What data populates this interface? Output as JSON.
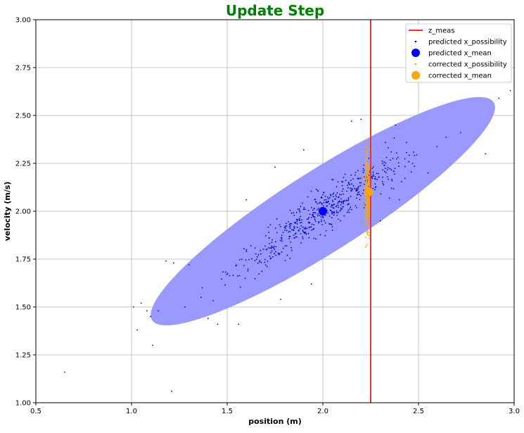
{
  "chart_data": {
    "type": "scatter",
    "title": "Update Step",
    "title_color": "#008000",
    "xlabel": "position (m)",
    "ylabel": "velocity (m/s)",
    "xlim": [
      0.5,
      3.0
    ],
    "ylim": [
      1.0,
      3.0
    ],
    "xticks": [
      "0.5",
      "1.0",
      "1.5",
      "2.0",
      "2.5",
      "3.0"
    ],
    "yticks": [
      "1.00",
      "1.25",
      "1.50",
      "1.75",
      "2.00",
      "2.25",
      "2.50",
      "2.75",
      "3.00"
    ],
    "grid": true,
    "legend_position": "top-right",
    "legend": [
      {
        "label": "z_meas",
        "marker": "line",
        "color": "#e8352a"
      },
      {
        "label": "predicted x_possibility",
        "marker": "small-dot",
        "color": "#0000cc"
      },
      {
        "label": "predicted x_mean",
        "marker": "large-dot",
        "color": "#0000ff"
      },
      {
        "label": "corrected x_possibility",
        "marker": "small-dot",
        "color": "#ffa500"
      },
      {
        "label": "corrected x_mean",
        "marker": "large-dot",
        "color": "#ffa500"
      }
    ],
    "z_meas": {
      "x": 2.25,
      "color": "#e8352a"
    },
    "ellipse": {
      "center": [
        2.0,
        2.0
      ],
      "x_extent": [
        1.1,
        2.9
      ],
      "y_extent": [
        1.39,
        2.61
      ],
      "fill": "#9999ff"
    },
    "predicted_mean": {
      "x": 2.0,
      "y": 2.0,
      "color": "#0000ff"
    },
    "corrected_mean": {
      "x": 2.24,
      "y": 2.1,
      "color": "#ffa500"
    },
    "predicted_points": {
      "color": "#0000cc",
      "x": [
        0.65,
        1.21,
        1.03,
        1.11,
        1.01,
        1.05,
        1.08,
        1.1,
        1.14,
        1.18,
        1.22,
        1.28,
        1.3,
        1.37,
        1.4,
        1.45,
        1.56,
        1.78,
        1.94,
        2.92,
        2.98,
        2.85,
        2.72,
        2.55,
        2.47,
        2.38,
        2.2,
        2.15,
        1.9,
        1.75,
        1.6,
        2.3,
        2.4,
        2.05,
        1.85
      ],
      "y": [
        1.16,
        1.06,
        1.38,
        1.3,
        1.5,
        1.52,
        1.48,
        1.45,
        1.48,
        1.74,
        1.73,
        1.5,
        1.72,
        1.6,
        1.44,
        1.41,
        1.41,
        1.54,
        1.62,
        2.59,
        2.63,
        2.3,
        2.41,
        2.2,
        2.25,
        2.45,
        2.48,
        2.47,
        2.32,
        2.23,
        2.06,
        1.95,
        2.06,
        1.9,
        1.92
      ]
    }
  }
}
